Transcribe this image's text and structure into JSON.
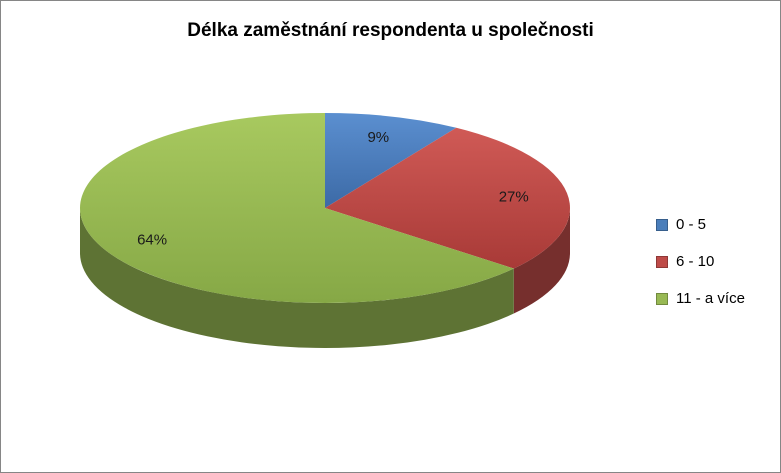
{
  "chart_data": {
    "type": "pie",
    "title": "Délka zaměstnání respondenta u společnosti",
    "categories": [
      "0 - 5",
      "6 - 10",
      "11 - a více"
    ],
    "values": [
      9,
      27,
      64
    ],
    "value_labels": [
      "9%",
      "27%",
      "64%"
    ],
    "colors": [
      "#4a7ebb",
      "#be4b48",
      "#98b954"
    ],
    "legend_position": "right",
    "three_d": true
  }
}
